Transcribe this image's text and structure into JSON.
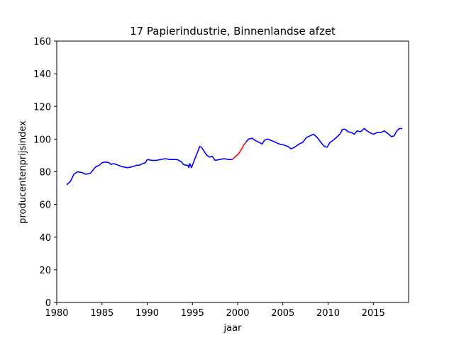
{
  "chart_data": {
    "type": "line",
    "title": "17 Papierindustrie, Binnenlandse afzet",
    "xlabel": "jaar",
    "ylabel": "producentenprijsindex",
    "xlim": [
      1980,
      2018.9
    ],
    "ylim": [
      0,
      160
    ],
    "xticks": [
      1980,
      1985,
      1990,
      1995,
      2000,
      2005,
      2010,
      2015
    ],
    "yticks": [
      0,
      20,
      40,
      60,
      80,
      100,
      120,
      140,
      160
    ],
    "grid": false,
    "series": [
      {
        "color": "#0000ff",
        "x": [
          1981.1,
          1981.5,
          1981.9,
          1982.3,
          1982.8,
          1983.2,
          1983.7,
          1984.0,
          1984.3,
          1984.7,
          1985.0,
          1985.4,
          1985.8,
          1986.0,
          1986.3,
          1986.8,
          1987.3,
          1987.8,
          1988.3,
          1988.6,
          1988.8,
          1989.1,
          1989.5,
          1989.8,
          1990.0,
          1990.5,
          1991.0,
          1991.5,
          1992.0,
          1992.5,
          1993.0,
          1993.3,
          1993.5,
          1993.8,
          1994.0,
          1994.3,
          1994.5,
          1994.6,
          1994.7,
          1994.9,
          1995.2,
          1995.5,
          1995.8,
          1996.0,
          1996.3,
          1996.6,
          1996.9,
          1997.2,
          1997.5,
          1998.0,
          1998.5,
          1999.0,
          1999.4
        ],
        "y": [
          72,
          74,
          78.5,
          80,
          79.5,
          78.5,
          79,
          81,
          83,
          84,
          85.5,
          86,
          85.5,
          84.5,
          85,
          84,
          83,
          82.5,
          83,
          83.5,
          84,
          84,
          85,
          85.5,
          87.5,
          87,
          87,
          87.5,
          88,
          87.5,
          87.5,
          87.5,
          87,
          86,
          84.5,
          84,
          84,
          82.5,
          85,
          82.5,
          87,
          91,
          95.5,
          95,
          92.5,
          90,
          89,
          89.5,
          87,
          87.5,
          88,
          87.5,
          87.5
        ]
      },
      {
        "color": "#ff0000",
        "x": [
          1999.4,
          1999.8,
          2000.1,
          2000.4,
          2000.7,
          2000.9
        ],
        "y": [
          87.5,
          89.5,
          91,
          93.5,
          96.5,
          98
        ]
      },
      {
        "color": "#0000ff",
        "x": [
          2000.9,
          2001.2,
          2001.6,
          2002.0,
          2002.4,
          2002.7,
          2003.0,
          2003.3,
          2003.8,
          2004.2,
          2004.6,
          2005.0,
          2005.3,
          2005.6,
          2005.9,
          2006.3,
          2006.8,
          2007.2,
          2007.6,
          2008.0,
          2008.4,
          2008.8,
          2009.2,
          2009.6,
          2009.9,
          2010.2,
          2010.5,
          2010.9,
          2011.3,
          2011.6,
          2011.9,
          2012.2,
          2012.6,
          2012.9,
          2013.2,
          2013.6,
          2014.0,
          2014.3,
          2014.6,
          2015.0,
          2015.4,
          2015.8,
          2016.2,
          2016.6,
          2017.0,
          2017.3,
          2017.6,
          2017.9,
          2018.2
        ],
        "y": [
          98,
          100,
          100.5,
          99,
          98,
          97,
          99.5,
          100,
          99,
          98,
          97,
          96.5,
          96,
          95.5,
          94,
          95,
          97,
          98,
          101,
          102,
          103,
          101,
          98,
          95.5,
          95,
          98,
          99,
          101,
          103,
          106,
          106,
          104.5,
          104,
          103,
          105,
          104.5,
          106.5,
          105,
          104,
          103,
          104,
          104,
          105,
          103.5,
          101.5,
          102,
          105,
          106.5,
          106.5
        ]
      }
    ]
  }
}
